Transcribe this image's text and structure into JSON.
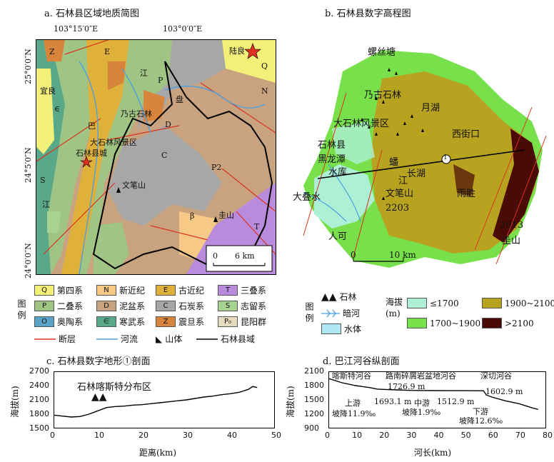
{
  "panel_a": {
    "title": "a. 石林县区域地质简图",
    "lon_labels": [
      "103°15′0″E",
      "103°0′0″E"
    ],
    "lat_labels": [
      "25°0′0″N",
      "24°5′0″N",
      "24°0′0″N"
    ],
    "place_labels": [
      "陆良",
      "宜良",
      "乃古石林",
      "大石林风景区",
      "石林县城",
      "文笔山",
      "盘",
      "江",
      "巴",
      "圭山",
      "江"
    ],
    "unit_letters": [
      "Q",
      "E",
      "Z",
      "N",
      "P",
      "D",
      "C",
      "S",
      "T",
      "∈",
      "P2",
      "β"
    ],
    "scalebar": {
      "start": "0",
      "end": "6 km"
    }
  },
  "panel_b": {
    "title": "b. 石林县数字高程图",
    "place_labels": [
      "螺丝塘",
      "乃古石林",
      "月湖",
      "大石林风景区",
      "石林县",
      "黑龙潭",
      "水库",
      "西街口",
      "长湖",
      "大叠水",
      "文笔山",
      "2203",
      "雨胜",
      "人可",
      "2613",
      "圭山",
      "蟠",
      "江"
    ],
    "profile_marker": "1",
    "scalebar": {
      "start": "0",
      "end": "10 km"
    }
  },
  "legend_geo": {
    "title": "图例",
    "items": [
      {
        "code": "Q",
        "label": "第四系",
        "color": "#f3f07a"
      },
      {
        "code": "N",
        "label": "新近纪",
        "color": "#f7c986"
      },
      {
        "code": "E",
        "label": "古近纪",
        "color": "#e0b13a"
      },
      {
        "code": "T",
        "label": "三叠系",
        "color": "#b98bdc"
      },
      {
        "code": "P",
        "label": "二叠系",
        "color": "#9fc483"
      },
      {
        "code": "D",
        "label": "泥盆系",
        "color": "#c9a37f"
      },
      {
        "code": "C",
        "label": "石炭系",
        "color": "#a7a7a7"
      },
      {
        "code": "S",
        "label": "志留系",
        "color": "#a8d28f"
      },
      {
        "code": "O",
        "label": "奥陶系",
        "color": "#5aa3c8"
      },
      {
        "code": "∈",
        "label": "寒武系",
        "color": "#5aa88a"
      },
      {
        "code": "Z",
        "label": "震旦系",
        "color": "#d8843a"
      },
      {
        "code": "P₀",
        "label": "昆阳群",
        "color": "#e7dcc0"
      }
    ],
    "line_items": [
      {
        "label": "断层",
        "color": "#d9341f"
      },
      {
        "label": "河流",
        "color": "#4aa0e0"
      },
      {
        "label": "山体",
        "color": "#000000"
      },
      {
        "label": "石林县域",
        "color": "#000000"
      }
    ]
  },
  "legend_dem": {
    "title": "图例",
    "items": [
      {
        "label": "石林",
        "icon": "karst-peak-icon"
      },
      {
        "label": "暗河",
        "icon": "underground-river-icon"
      },
      {
        "label": "水体",
        "color": "#aee8f5"
      }
    ],
    "elev_title": "海拔(m)",
    "elev_items": [
      {
        "label": "≤1700",
        "color": "#aef0d6"
      },
      {
        "label": "1700~1900",
        "color": "#78e04a"
      },
      {
        "label": "1900~2100",
        "color": "#b8a321"
      },
      {
        "label": ">2100",
        "color": "#4a0a05"
      }
    ]
  },
  "panel_c": {
    "title": "c. 石林县数字地形①剖面",
    "annotation": "石林喀斯特分布区",
    "ylabel": "海拔(m)",
    "xlabel": "距离(km)",
    "yticks": [
      "2700",
      "2400",
      "2100",
      "1800",
      "1500"
    ],
    "xticks": [
      "0",
      "10",
      "20",
      "30",
      "40",
      "50"
    ]
  },
  "panel_d": {
    "title": "d. 巴江河谷纵剖面",
    "ylabel": "海拔(m)",
    "xlabel": "河长(km)",
    "yticks": [
      "2100",
      "1800",
      "1500",
      "1200",
      "900"
    ],
    "xticks": [
      "0",
      "10",
      "20",
      "30",
      "40",
      "50",
      "60",
      "70",
      "80"
    ],
    "segment_labels": [
      "喀斯特河谷",
      "路南碎屑岩盆地河谷",
      "深切河谷"
    ],
    "annotations": [
      "1726.9 m",
      "上游",
      "1693.1 m",
      "坡降11.9‰",
      "中游",
      "1512.9 m",
      "坡降1.9‰",
      "1602.9 m",
      "下游",
      "坡降12.6‰"
    ]
  },
  "chart_data": [
    {
      "type": "line",
      "title": "c. 石林县数字地形①剖面",
      "xlabel": "距离(km)",
      "ylabel": "海拔(m)",
      "xlim": [
        0,
        50
      ],
      "ylim": [
        1500,
        2700
      ],
      "series": [
        {
          "x": [
            0,
            2,
            4,
            6,
            8,
            10,
            12,
            14,
            16,
            18,
            20,
            22,
            24,
            26,
            28,
            30,
            32,
            34,
            36,
            38,
            40,
            42,
            44,
            45,
            46
          ],
          "y": [
            1780,
            1760,
            1740,
            1750,
            1800,
            1870,
            1940,
            1960,
            1970,
            1990,
            2000,
            2020,
            2040,
            2060,
            2080,
            2100,
            2130,
            2160,
            2180,
            2210,
            2230,
            2260,
            2320,
            2380,
            2360
          ]
        }
      ]
    },
    {
      "type": "line",
      "title": "d. 巴江河谷纵剖面",
      "xlabel": "河长(km)",
      "ylabel": "海拔(m)",
      "xlim": [
        0,
        80
      ],
      "ylim": [
        900,
        2100
      ],
      "series": [
        {
          "x": [
            0,
            5,
            10,
            15,
            18,
            20,
            25,
            30,
            35,
            40,
            45,
            50,
            55,
            57,
            58,
            60,
            65,
            70,
            75,
            77
          ],
          "y": [
            1950,
            1860,
            1800,
            1760,
            1727,
            1720,
            1710,
            1700,
            1697,
            1695,
            1694,
            1693,
            1692,
            1690,
            1603,
            1560,
            1480,
            1420,
            1330,
            1300
          ]
        }
      ]
    }
  ]
}
